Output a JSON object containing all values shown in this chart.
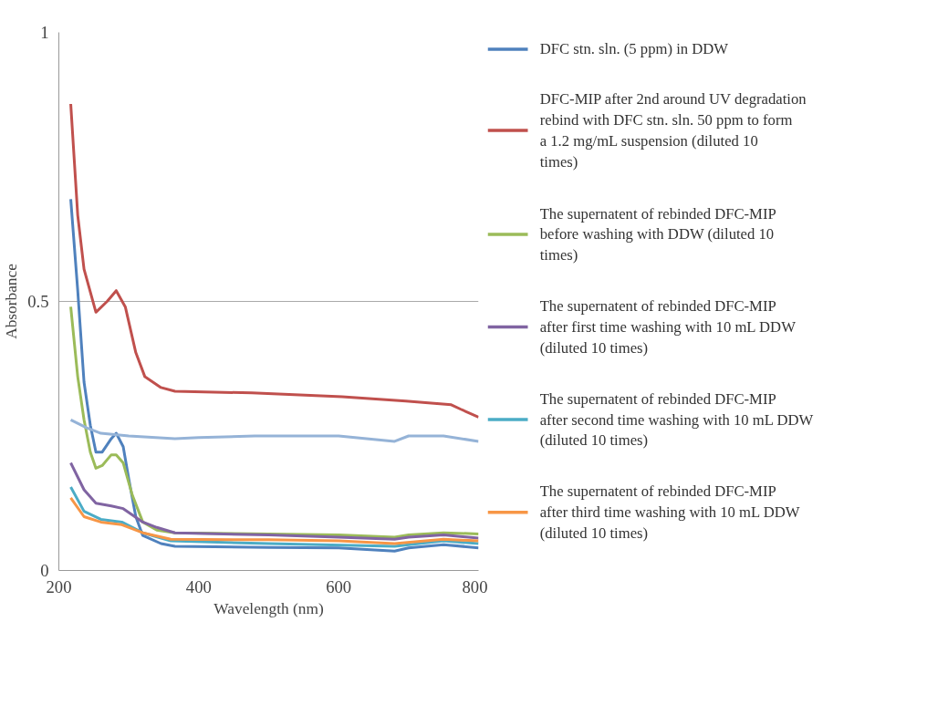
{
  "chart_data": {
    "type": "line",
    "xlabel": "Wavelength (nm)",
    "ylabel": "Absorbance",
    "xlim": [
      200,
      800
    ],
    "ylim": [
      0,
      1
    ],
    "xticks": [
      200,
      400,
      600,
      800
    ],
    "yticks": [
      0,
      0.5,
      1
    ],
    "grid": "y",
    "legend": "right",
    "line_style": "solid",
    "marker": "none",
    "series": [
      {
        "name": "DFC stn. sln. (5 ppm) in DDW",
        "color": "#4f81bd",
        "x": [
          217,
          227,
          236,
          245,
          253,
          262,
          275,
          282,
          292,
          300,
          310,
          320,
          346,
          366,
          500,
          600,
          680,
          700,
          750,
          800
        ],
        "values": [
          0.69,
          0.52,
          0.35,
          0.27,
          0.22,
          0.22,
          0.245,
          0.255,
          0.23,
          0.17,
          0.1,
          0.065,
          0.05,
          0.045,
          0.043,
          0.042,
          0.036,
          0.042,
          0.048,
          0.042
        ]
      },
      {
        "name": "DFC-MIP after 2nd around UV degradation rebind with DFC stn. sln. 50 ppm to form a 1.2 mg/mL suspension (diluted 10 times)",
        "color": "#c0504d",
        "x": [
          217,
          227,
          236,
          253,
          269,
          282,
          295,
          310,
          323,
          346,
          366,
          476,
          605,
          696,
          761,
          774,
          800
        ],
        "values": [
          0.867,
          0.66,
          0.56,
          0.48,
          0.5,
          0.52,
          0.49,
          0.405,
          0.36,
          0.34,
          0.333,
          0.33,
          0.323,
          0.315,
          0.308,
          0.3,
          0.285
        ]
      },
      {
        "name": "The supernatent of rebinded DFC-MIP before washing with DDW (diluted 10 times)",
        "color": "#9bbb59",
        "x": [
          217,
          227,
          236,
          245,
          253,
          262,
          275,
          282,
          292,
          305,
          320,
          340,
          366,
          500,
          600,
          680,
          700,
          750,
          800
        ],
        "values": [
          0.49,
          0.36,
          0.28,
          0.22,
          0.19,
          0.195,
          0.215,
          0.215,
          0.2,
          0.14,
          0.09,
          0.075,
          0.07,
          0.068,
          0.066,
          0.062,
          0.066,
          0.07,
          0.068
        ]
      },
      {
        "name": "The supernatent of rebinded DFC-MIP after first time washing with 10 mL DDW (diluted 10 times)",
        "color": "#8064a2",
        "x": [
          217,
          236,
          253,
          275,
          292,
          320,
          340,
          366,
          500,
          600,
          680,
          700,
          750,
          800
        ],
        "values": [
          0.2,
          0.15,
          0.125,
          0.12,
          0.115,
          0.09,
          0.08,
          0.07,
          0.066,
          0.062,
          0.058,
          0.062,
          0.066,
          0.06
        ]
      },
      {
        "name": "The supernatent of rebinded DFC-MIP after second time washing with 10 mL DDW (diluted 10 times)",
        "color": "#4bacc6",
        "x": [
          217,
          236,
          260,
          290,
          320,
          360,
          500,
          680,
          750,
          800
        ],
        "values": [
          0.155,
          0.11,
          0.095,
          0.09,
          0.07,
          0.055,
          0.05,
          0.045,
          0.055,
          0.05
        ]
      },
      {
        "name": "The supernatent of rebinded DFC-MIP after third time washing with 10 mL DDW (diluted 10 times)",
        "color": "#f79646",
        "x": [
          217,
          236,
          260,
          290,
          320,
          360,
          500,
          600,
          680,
          750,
          800
        ],
        "values": [
          0.135,
          0.1,
          0.09,
          0.085,
          0.07,
          0.058,
          0.057,
          0.055,
          0.05,
          0.058,
          0.055
        ]
      },
      {
        "color": "#95b3d7",
        "x": [
          217,
          240,
          260,
          300,
          366,
          400,
          480,
          600,
          680,
          700,
          750,
          800
        ],
        "values": [
          0.28,
          0.265,
          0.255,
          0.25,
          0.245,
          0.247,
          0.25,
          0.25,
          0.24,
          0.25,
          0.25,
          0.24
        ]
      }
    ]
  }
}
